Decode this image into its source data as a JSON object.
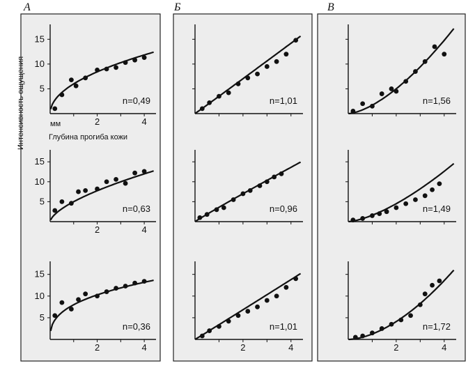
{
  "columns": [
    {
      "letter": "A"
    },
    {
      "letter": "Б"
    },
    {
      "letter": "В"
    }
  ],
  "ylabel": "Интенсивность ощущения",
  "xlabel": "Глубина прогиба кожи",
  "xunit": "мм",
  "colors": {
    "ink": "#111111",
    "panel_bg": "#ededed",
    "panel_border": "#222222"
  },
  "chart_data": [
    {
      "type": "scatter",
      "column": "A",
      "row": 1,
      "annotation": "n=0,49",
      "xlim": [
        0,
        4.5
      ],
      "ylim": [
        0,
        18
      ],
      "xticks": [
        "2",
        "4"
      ],
      "yticks": [
        "5",
        "10",
        "15"
      ],
      "fit": {
        "k": 6.0,
        "n": 0.49
      },
      "x": [
        0.2,
        0.5,
        0.9,
        1.1,
        1.5,
        2.0,
        2.4,
        2.8,
        3.2,
        3.6,
        4.0
      ],
      "y": [
        1.0,
        3.8,
        6.8,
        5.6,
        7.2,
        8.8,
        9.0,
        9.3,
        10.3,
        10.8,
        11.3
      ]
    },
    {
      "type": "scatter",
      "column": "A",
      "row": 2,
      "annotation": "n=0,63",
      "xlim": [
        0,
        4.5
      ],
      "ylim": [
        0,
        18
      ],
      "xticks": [
        "2",
        "4"
      ],
      "yticks": [
        "5",
        "10",
        "15"
      ],
      "fit": {
        "k": 5.0,
        "n": 0.63
      },
      "x": [
        0.2,
        0.5,
        0.9,
        1.2,
        1.5,
        2.0,
        2.4,
        2.8,
        3.2,
        3.6,
        4.0
      ],
      "y": [
        2.8,
        5.0,
        4.6,
        7.5,
        7.8,
        8.2,
        10.0,
        10.6,
        9.6,
        12.2,
        12.6
      ]
    },
    {
      "type": "scatter",
      "column": "A",
      "row": 3,
      "annotation": "n=0,36",
      "xlim": [
        0,
        4.5
      ],
      "ylim": [
        0,
        18
      ],
      "xticks": [
        "2",
        "4"
      ],
      "yticks": [
        "5",
        "10",
        "15"
      ],
      "fit": {
        "k": 8.0,
        "n": 0.36
      },
      "x": [
        0.2,
        0.5,
        0.9,
        1.2,
        1.5,
        2.0,
        2.4,
        2.8,
        3.2,
        3.6,
        4.0
      ],
      "y": [
        5.5,
        8.5,
        7.0,
        9.2,
        10.5,
        10.0,
        11.0,
        11.8,
        12.3,
        13.0,
        13.4
      ]
    },
    {
      "type": "scatter",
      "column": "Б",
      "row": 1,
      "annotation": "n=1,01",
      "xlim": [
        0,
        4.5
      ],
      "ylim": [
        0,
        18
      ],
      "xticks": [],
      "yticks": [],
      "fit": {
        "k": 3.5,
        "n": 1.01
      },
      "x": [
        0.3,
        0.6,
        1.0,
        1.4,
        1.8,
        2.2,
        2.6,
        3.0,
        3.4,
        3.8,
        4.2
      ],
      "y": [
        1.0,
        2.2,
        3.5,
        4.2,
        6.0,
        7.2,
        8.0,
        9.5,
        10.5,
        12.0,
        14.8
      ]
    },
    {
      "type": "scatter",
      "column": "Б",
      "row": 2,
      "annotation": "n=0,96",
      "xlim": [
        0,
        4.5
      ],
      "ylim": [
        0,
        18
      ],
      "xticks": [],
      "yticks": [],
      "fit": {
        "k": 3.6,
        "n": 0.96
      },
      "x": [
        0.2,
        0.5,
        0.9,
        1.2,
        1.6,
        2.0,
        2.3,
        2.7,
        3.0,
        3.3,
        3.6
      ],
      "y": [
        1.0,
        1.8,
        3.0,
        3.5,
        5.5,
        7.0,
        7.8,
        9.0,
        10.0,
        11.2,
        12.0
      ]
    },
    {
      "type": "scatter",
      "column": "Б",
      "row": 3,
      "annotation": "n=1,01",
      "xlim": [
        0,
        4.5
      ],
      "ylim": [
        0,
        18
      ],
      "xticks": [
        "2",
        "4"
      ],
      "yticks": [],
      "fit": {
        "k": 3.4,
        "n": 1.01
      },
      "x": [
        0.3,
        0.6,
        1.0,
        1.4,
        1.8,
        2.2,
        2.6,
        3.0,
        3.4,
        3.8,
        4.2
      ],
      "y": [
        0.8,
        2.0,
        3.0,
        4.2,
        5.5,
        6.5,
        7.5,
        9.0,
        10.0,
        12.0,
        14.0
      ]
    },
    {
      "type": "scatter",
      "column": "В",
      "row": 1,
      "annotation": "n=1,56",
      "xlim": [
        0,
        4.5
      ],
      "ylim": [
        0,
        18
      ],
      "xticks": [],
      "yticks": [],
      "fit": {
        "k": 1.7,
        "n": 1.56
      },
      "x": [
        0.2,
        0.6,
        1.0,
        1.4,
        1.8,
        2.0,
        2.4,
        2.8,
        3.2,
        3.6,
        4.0
      ],
      "y": [
        0.5,
        2.0,
        1.5,
        4.0,
        5.0,
        4.5,
        6.5,
        8.5,
        10.5,
        13.5,
        12.0
      ]
    },
    {
      "type": "scatter",
      "column": "В",
      "row": 2,
      "annotation": "n=1,49",
      "xlim": [
        0,
        4.5
      ],
      "ylim": [
        0,
        18
      ],
      "xticks": [],
      "yticks": [],
      "fit": {
        "k": 1.6,
        "n": 1.49
      },
      "x": [
        0.2,
        0.6,
        1.0,
        1.3,
        1.6,
        2.0,
        2.4,
        2.8,
        3.2,
        3.5,
        3.8
      ],
      "y": [
        0.4,
        0.8,
        1.5,
        2.0,
        2.5,
        3.5,
        4.5,
        5.5,
        6.5,
        8.0,
        9.5
      ]
    },
    {
      "type": "scatter",
      "column": "В",
      "row": 3,
      "annotation": "n=1,72",
      "xlim": [
        0,
        4.5
      ],
      "ylim": [
        0,
        18
      ],
      "xticks": [
        "2",
        "4"
      ],
      "yticks": [],
      "fit": {
        "k": 1.25,
        "n": 1.72
      },
      "x": [
        0.3,
        0.6,
        1.0,
        1.4,
        1.8,
        2.2,
        2.6,
        3.0,
        3.2,
        3.5,
        3.8
      ],
      "y": [
        0.5,
        0.8,
        1.5,
        2.5,
        3.5,
        4.5,
        5.5,
        8.0,
        10.5,
        12.5,
        13.5
      ]
    }
  ]
}
